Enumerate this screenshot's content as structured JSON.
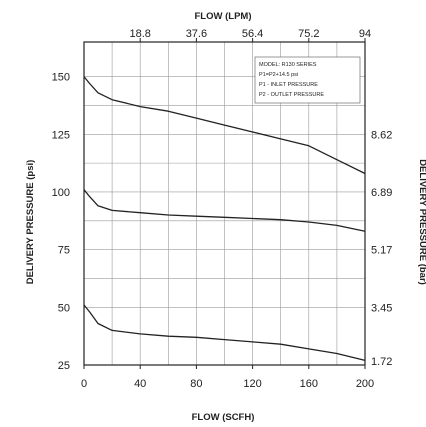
{
  "chart_data": {
    "type": "line",
    "title": "",
    "xlabel_bottom": "FLOW (SCFH)",
    "xlabel_top": "FLOW (LPM)",
    "ylabel_left": "DELIVERY PRESSURE (psi)",
    "ylabel_right": "DELIVERY PRESSURE (bar)",
    "xlim": [
      0,
      200
    ],
    "ylim": [
      25,
      165
    ],
    "x_ticks": [
      {
        "value": 0,
        "label": "0"
      },
      {
        "value": 40,
        "label": "40"
      },
      {
        "value": 80,
        "label": "80"
      },
      {
        "value": 120,
        "label": "120"
      },
      {
        "value": 160,
        "label": "160"
      },
      {
        "value": 200,
        "label": "200"
      }
    ],
    "y_ticks": [
      {
        "value": 25,
        "label": "25"
      },
      {
        "value": 50,
        "label": "50"
      },
      {
        "value": 75,
        "label": "75"
      },
      {
        "value": 100,
        "label": "100"
      },
      {
        "value": 125,
        "label": "125"
      },
      {
        "value": 150,
        "label": "150"
      }
    ],
    "top_ticks": [
      {
        "value": 40,
        "label": "18.8"
      },
      {
        "value": 80,
        "label": "37.6"
      },
      {
        "value": 120,
        "label": "56.4"
      },
      {
        "value": 160,
        "label": "75.2"
      },
      {
        "value": 200,
        "label": "94"
      }
    ],
    "right_ticks": [
      {
        "value": 25,
        "label": "1.72"
      },
      {
        "value": 50,
        "label": "3.45"
      },
      {
        "value": 75,
        "label": "5.17"
      },
      {
        "value": 100,
        "label": "6.89"
      },
      {
        "value": 125,
        "label": "8.62"
      }
    ],
    "grid": true,
    "grid_x": [
      20,
      40,
      60,
      80,
      100,
      120,
      140,
      160,
      180,
      200
    ],
    "grid_y": [
      50,
      62.5,
      75,
      87.5,
      100,
      112.5,
      125,
      137.5,
      150
    ],
    "series": [
      {
        "x": [
          0,
          4,
          10,
          20,
          40,
          60,
          80,
          100,
          120,
          140,
          160,
          180,
          200
        ],
        "y": [
          150,
          147,
          143,
          140,
          137,
          135,
          132,
          129,
          126,
          123,
          120,
          114,
          108
        ]
      },
      {
        "x": [
          0,
          4,
          10,
          20,
          40,
          60,
          80,
          100,
          120,
          140,
          160,
          180,
          200
        ],
        "y": [
          101,
          98,
          94,
          92,
          91,
          90,
          89.5,
          89,
          88.5,
          88,
          87,
          85.5,
          83
        ]
      },
      {
        "x": [
          0,
          4,
          10,
          20,
          40,
          60,
          80,
          100,
          120,
          140,
          160,
          180,
          200
        ],
        "y": [
          51,
          48,
          43,
          40,
          38.5,
          37.5,
          37,
          36,
          35,
          34,
          32,
          30,
          27
        ]
      }
    ],
    "legend_box": {
      "placement": "top-right",
      "lines": [
        "MODEL: R130 SERIES",
        "P1=P2+14.5 psi",
        "P1 - INLET PRESSURE",
        "P2 - OUTLET PRESSURE"
      ]
    },
    "colors": {
      "line": "#222222",
      "grid": "#9a9a9a",
      "background": "#ffffff"
    }
  }
}
